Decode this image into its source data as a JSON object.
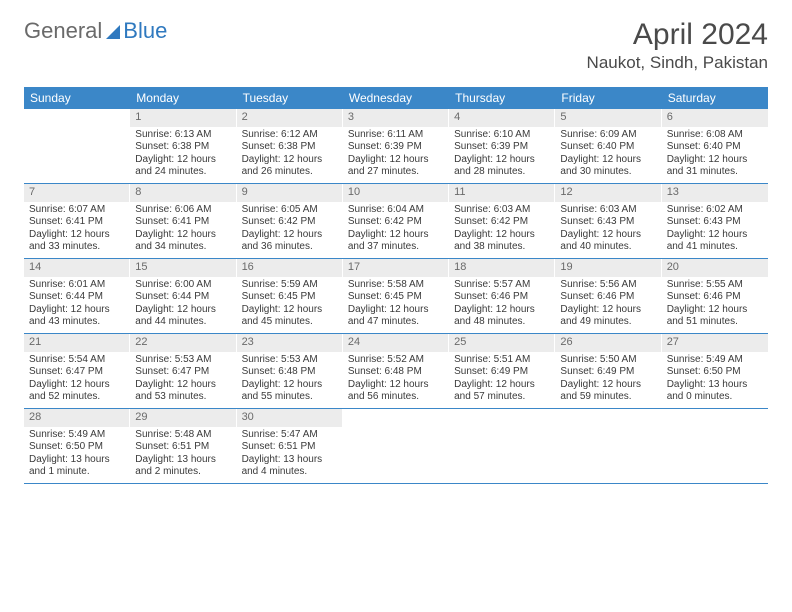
{
  "brand": {
    "part1": "General",
    "part2": "Blue"
  },
  "title": "April 2024",
  "location": "Naukot, Sindh, Pakistan",
  "colors": {
    "header_bg": "#3b87c8",
    "header_text": "#ffffff",
    "daynum_bg": "#ececec",
    "daynum_text": "#6a6a6a",
    "body_text": "#3a3a3a",
    "rule": "#3b87c8",
    "brand_blue": "#2f79bf",
    "brand_gray": "#6a6a6a"
  },
  "fonts": {
    "title_size": 30,
    "location_size": 17,
    "dow_size": 12,
    "cell_size": 10,
    "daynum_size": 11
  },
  "days_of_week": [
    "Sunday",
    "Monday",
    "Tuesday",
    "Wednesday",
    "Thursday",
    "Friday",
    "Saturday"
  ],
  "weeks": [
    [
      {
        "n": "",
        "sr": "",
        "ss": "",
        "dl": ""
      },
      {
        "n": "1",
        "sr": "Sunrise: 6:13 AM",
        "ss": "Sunset: 6:38 PM",
        "dl": "Daylight: 12 hours and 24 minutes."
      },
      {
        "n": "2",
        "sr": "Sunrise: 6:12 AM",
        "ss": "Sunset: 6:38 PM",
        "dl": "Daylight: 12 hours and 26 minutes."
      },
      {
        "n": "3",
        "sr": "Sunrise: 6:11 AM",
        "ss": "Sunset: 6:39 PM",
        "dl": "Daylight: 12 hours and 27 minutes."
      },
      {
        "n": "4",
        "sr": "Sunrise: 6:10 AM",
        "ss": "Sunset: 6:39 PM",
        "dl": "Daylight: 12 hours and 28 minutes."
      },
      {
        "n": "5",
        "sr": "Sunrise: 6:09 AM",
        "ss": "Sunset: 6:40 PM",
        "dl": "Daylight: 12 hours and 30 minutes."
      },
      {
        "n": "6",
        "sr": "Sunrise: 6:08 AM",
        "ss": "Sunset: 6:40 PM",
        "dl": "Daylight: 12 hours and 31 minutes."
      }
    ],
    [
      {
        "n": "7",
        "sr": "Sunrise: 6:07 AM",
        "ss": "Sunset: 6:41 PM",
        "dl": "Daylight: 12 hours and 33 minutes."
      },
      {
        "n": "8",
        "sr": "Sunrise: 6:06 AM",
        "ss": "Sunset: 6:41 PM",
        "dl": "Daylight: 12 hours and 34 minutes."
      },
      {
        "n": "9",
        "sr": "Sunrise: 6:05 AM",
        "ss": "Sunset: 6:42 PM",
        "dl": "Daylight: 12 hours and 36 minutes."
      },
      {
        "n": "10",
        "sr": "Sunrise: 6:04 AM",
        "ss": "Sunset: 6:42 PM",
        "dl": "Daylight: 12 hours and 37 minutes."
      },
      {
        "n": "11",
        "sr": "Sunrise: 6:03 AM",
        "ss": "Sunset: 6:42 PM",
        "dl": "Daylight: 12 hours and 38 minutes."
      },
      {
        "n": "12",
        "sr": "Sunrise: 6:03 AM",
        "ss": "Sunset: 6:43 PM",
        "dl": "Daylight: 12 hours and 40 minutes."
      },
      {
        "n": "13",
        "sr": "Sunrise: 6:02 AM",
        "ss": "Sunset: 6:43 PM",
        "dl": "Daylight: 12 hours and 41 minutes."
      }
    ],
    [
      {
        "n": "14",
        "sr": "Sunrise: 6:01 AM",
        "ss": "Sunset: 6:44 PM",
        "dl": "Daylight: 12 hours and 43 minutes."
      },
      {
        "n": "15",
        "sr": "Sunrise: 6:00 AM",
        "ss": "Sunset: 6:44 PM",
        "dl": "Daylight: 12 hours and 44 minutes."
      },
      {
        "n": "16",
        "sr": "Sunrise: 5:59 AM",
        "ss": "Sunset: 6:45 PM",
        "dl": "Daylight: 12 hours and 45 minutes."
      },
      {
        "n": "17",
        "sr": "Sunrise: 5:58 AM",
        "ss": "Sunset: 6:45 PM",
        "dl": "Daylight: 12 hours and 47 minutes."
      },
      {
        "n": "18",
        "sr": "Sunrise: 5:57 AM",
        "ss": "Sunset: 6:46 PM",
        "dl": "Daylight: 12 hours and 48 minutes."
      },
      {
        "n": "19",
        "sr": "Sunrise: 5:56 AM",
        "ss": "Sunset: 6:46 PM",
        "dl": "Daylight: 12 hours and 49 minutes."
      },
      {
        "n": "20",
        "sr": "Sunrise: 5:55 AM",
        "ss": "Sunset: 6:46 PM",
        "dl": "Daylight: 12 hours and 51 minutes."
      }
    ],
    [
      {
        "n": "21",
        "sr": "Sunrise: 5:54 AM",
        "ss": "Sunset: 6:47 PM",
        "dl": "Daylight: 12 hours and 52 minutes."
      },
      {
        "n": "22",
        "sr": "Sunrise: 5:53 AM",
        "ss": "Sunset: 6:47 PM",
        "dl": "Daylight: 12 hours and 53 minutes."
      },
      {
        "n": "23",
        "sr": "Sunrise: 5:53 AM",
        "ss": "Sunset: 6:48 PM",
        "dl": "Daylight: 12 hours and 55 minutes."
      },
      {
        "n": "24",
        "sr": "Sunrise: 5:52 AM",
        "ss": "Sunset: 6:48 PM",
        "dl": "Daylight: 12 hours and 56 minutes."
      },
      {
        "n": "25",
        "sr": "Sunrise: 5:51 AM",
        "ss": "Sunset: 6:49 PM",
        "dl": "Daylight: 12 hours and 57 minutes."
      },
      {
        "n": "26",
        "sr": "Sunrise: 5:50 AM",
        "ss": "Sunset: 6:49 PM",
        "dl": "Daylight: 12 hours and 59 minutes."
      },
      {
        "n": "27",
        "sr": "Sunrise: 5:49 AM",
        "ss": "Sunset: 6:50 PM",
        "dl": "Daylight: 13 hours and 0 minutes."
      }
    ],
    [
      {
        "n": "28",
        "sr": "Sunrise: 5:49 AM",
        "ss": "Sunset: 6:50 PM",
        "dl": "Daylight: 13 hours and 1 minute."
      },
      {
        "n": "29",
        "sr": "Sunrise: 5:48 AM",
        "ss": "Sunset: 6:51 PM",
        "dl": "Daylight: 13 hours and 2 minutes."
      },
      {
        "n": "30",
        "sr": "Sunrise: 5:47 AM",
        "ss": "Sunset: 6:51 PM",
        "dl": "Daylight: 13 hours and 4 minutes."
      },
      {
        "n": "",
        "sr": "",
        "ss": "",
        "dl": ""
      },
      {
        "n": "",
        "sr": "",
        "ss": "",
        "dl": ""
      },
      {
        "n": "",
        "sr": "",
        "ss": "",
        "dl": ""
      },
      {
        "n": "",
        "sr": "",
        "ss": "",
        "dl": ""
      }
    ]
  ]
}
